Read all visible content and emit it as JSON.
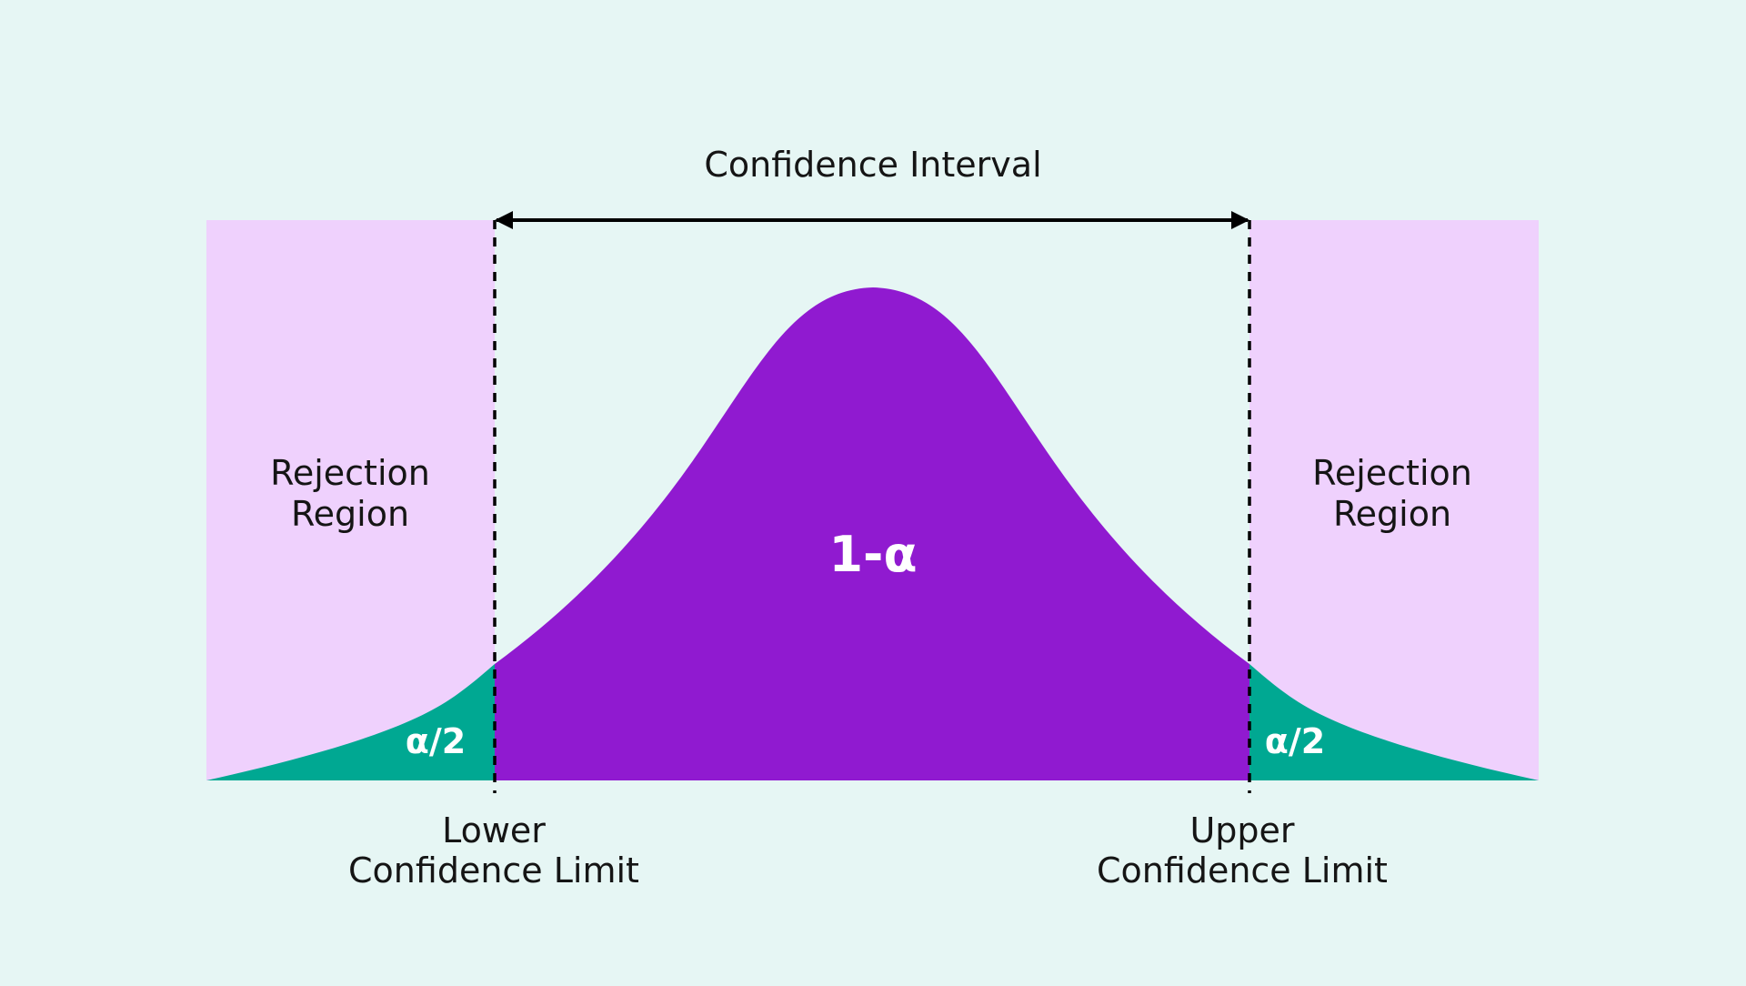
{
  "colors": {
    "background": "#e6f6f4",
    "rejection_region": "#efd1fd",
    "acceptance_area": "#901ad0",
    "tail_area": "#00a892",
    "text": "#151515",
    "text_on_fill": "#ffffff",
    "lines": "#000000"
  },
  "diagram": {
    "interval_label": "Confidence Interval",
    "left_region": {
      "line1": "Rejection",
      "line2": "Region"
    },
    "right_region": {
      "line1": "Rejection",
      "line2": "Region"
    },
    "center_label": "1-α",
    "left_tail_label": "α/2",
    "right_tail_label": "α/2",
    "lower_limit": {
      "line1": "Lower",
      "line2": "Confidence Limit"
    },
    "upper_limit": {
      "line1": "Upper",
      "line2": "Confidence Limit"
    }
  }
}
